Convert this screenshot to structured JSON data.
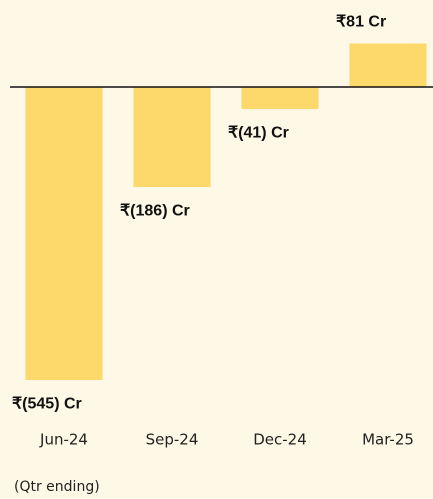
{
  "chart_data": {
    "type": "bar",
    "categories": [
      "Jun-24",
      "Sep-24",
      "Dec-24",
      "Mar-25"
    ],
    "values": [
      -545,
      -186,
      -41,
      81
    ],
    "value_labels": [
      "₹(545) Cr",
      "₹(186) Cr",
      "₹(41) Cr",
      "₹81 Cr"
    ],
    "color": "#fdd96b",
    "xlabel": "(Qtr ending)",
    "ylim": [
      -600,
      150
    ]
  }
}
